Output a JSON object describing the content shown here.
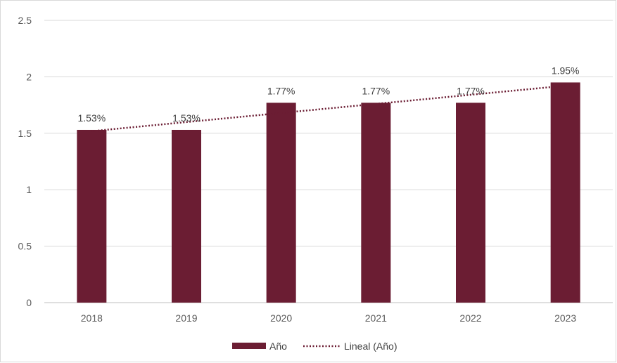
{
  "chart_data": {
    "type": "bar",
    "categories": [
      "2018",
      "2019",
      "2020",
      "2021",
      "2022",
      "2023"
    ],
    "series": [
      {
        "name": "Año",
        "values": [
          1.53,
          1.53,
          1.77,
          1.77,
          1.77,
          1.95
        ],
        "data_labels": [
          "1.53%",
          "1.53%",
          "1.77%",
          "1.77%",
          "1.77%",
          "1.95%"
        ],
        "color": "#6b1d33"
      }
    ],
    "trendline": {
      "name": "Lineal (Año)",
      "kind": "linear",
      "style": "dotted",
      "color": "#6b1d33"
    },
    "ylim": [
      0,
      2.5
    ],
    "yticks": [
      "0",
      "0.5",
      "1",
      "1.5",
      "2",
      "2.5"
    ],
    "grid": true,
    "legend_position": "bottom"
  }
}
